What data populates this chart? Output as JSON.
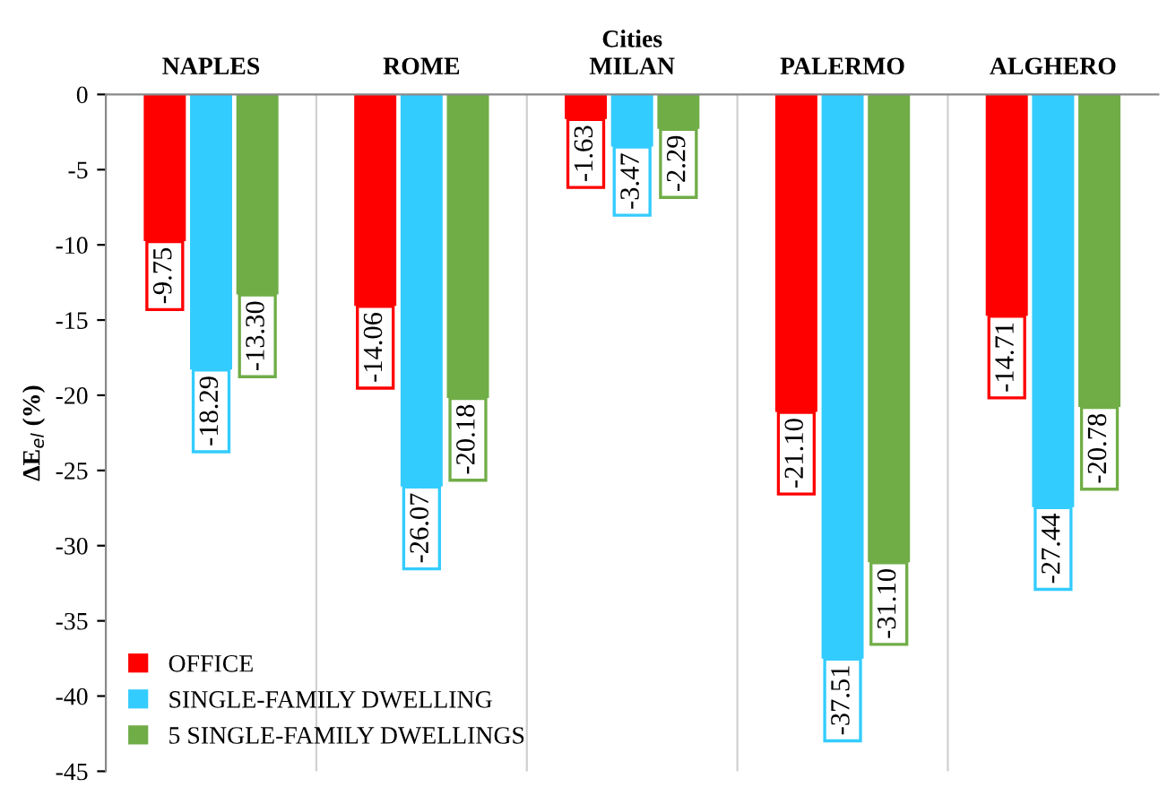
{
  "chart_data": {
    "type": "bar",
    "xlabel": "Cities",
    "ylabel": "ΔE$_{el}$ (%)",
    "categories": [
      "NAPLES",
      "ROME",
      "MILAN",
      "PALERMO",
      "ALGHERO"
    ],
    "series": [
      {
        "name": "OFFICE",
        "color": "#ff0000",
        "values": [
          -9.75,
          -14.06,
          -1.63,
          -21.1,
          -14.71
        ],
        "value_labels": [
          "-9.75",
          "-14.06",
          "-1.63",
          "-21.10",
          "-14.71"
        ]
      },
      {
        "name": "SINGLE-FAMILY DWELLING",
        "color": "#33ccff",
        "values": [
          -18.29,
          -26.07,
          -3.47,
          -37.51,
          -27.44
        ],
        "value_labels": [
          "-18.29",
          "-26.07",
          "-3.47",
          "-37.51",
          "-27.44"
        ]
      },
      {
        "name": "5 SINGLE-FAMILY DWELLINGS",
        "color": "#70ad47",
        "values": [
          -13.3,
          -20.18,
          -2.29,
          -31.1,
          -20.78
        ],
        "value_labels": [
          "-13.30",
          "-20.18",
          "-2.29",
          "-31.10",
          "-20.78"
        ]
      }
    ],
    "ylim": [
      -45,
      0
    ],
    "yticks": [
      0,
      -5,
      -10,
      -15,
      -20,
      -25,
      -30,
      -35,
      -40,
      -45
    ],
    "grid": "x",
    "legend": "bottom left"
  }
}
